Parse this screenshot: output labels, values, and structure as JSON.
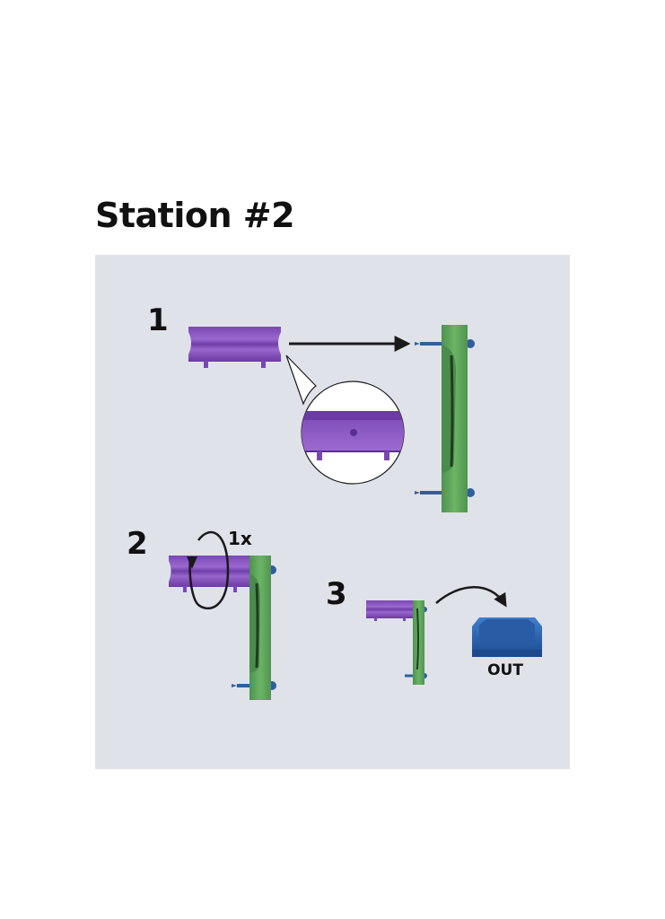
{
  "title": "Station #2",
  "steps": [
    {
      "number": "1"
    },
    {
      "number": "2",
      "note": "1x"
    },
    {
      "number": "3",
      "bin_label": "OUT"
    }
  ],
  "colors": {
    "background": "#e0e2ea",
    "ring": "#8a55c0",
    "bracket": "#62a85e",
    "pin": "#2f5f9e",
    "bin": "#2f6ab8"
  }
}
